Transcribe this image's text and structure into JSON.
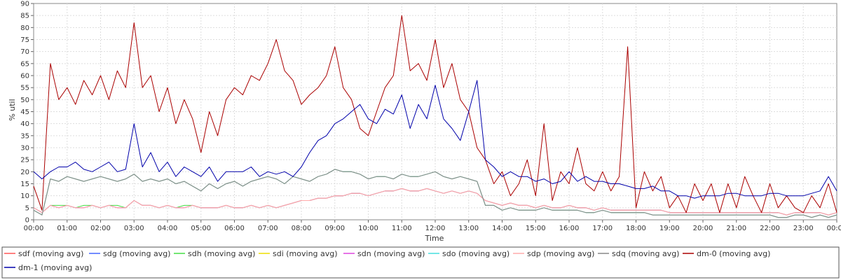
{
  "chart_data": {
    "type": "line",
    "title": "",
    "xlabel": "Time",
    "ylabel": "% util",
    "ylim": [
      0,
      90
    ],
    "xlim": [
      "00:00",
      "24:00"
    ],
    "yticks": [
      0,
      5,
      10,
      15,
      20,
      25,
      30,
      35,
      40,
      45,
      50,
      55,
      60,
      65,
      70,
      75,
      80,
      85,
      90
    ],
    "xticks": [
      "00:00",
      "01:00",
      "02:00",
      "03:00",
      "04:00",
      "05:00",
      "06:00",
      "07:00",
      "08:00",
      "09:00",
      "10:00",
      "11:00",
      "12:00",
      "13:00",
      "14:00",
      "15:00",
      "16:00",
      "17:00",
      "18:00",
      "19:00",
      "20:00",
      "21:00",
      "22:00",
      "23:00",
      "00:00"
    ],
    "grid": true,
    "legend_position": "bottom",
    "x_hours": [
      0,
      0.25,
      0.5,
      0.75,
      1,
      1.25,
      1.5,
      1.75,
      2,
      2.25,
      2.5,
      2.75,
      3,
      3.25,
      3.5,
      3.75,
      4,
      4.25,
      4.5,
      4.75,
      5,
      5.25,
      5.5,
      5.75,
      6,
      6.25,
      6.5,
      6.75,
      7,
      7.25,
      7.5,
      7.75,
      8,
      8.25,
      8.5,
      8.75,
      9,
      9.25,
      9.5,
      9.75,
      10,
      10.25,
      10.5,
      10.75,
      11,
      11.25,
      11.5,
      11.75,
      12,
      12.25,
      12.5,
      12.75,
      13,
      13.25,
      13.5,
      13.75,
      14,
      14.25,
      14.5,
      14.75,
      15,
      15.25,
      15.5,
      15.75,
      16,
      16.25,
      16.5,
      16.75,
      17,
      17.25,
      17.5,
      17.75,
      18,
      18.25,
      18.5,
      18.75,
      19,
      19.25,
      19.5,
      19.75,
      20,
      20.25,
      20.5,
      20.75,
      21,
      21.25,
      21.5,
      21.75,
      22,
      22.25,
      22.5,
      22.75,
      23,
      23.25,
      23.5,
      23.75,
      24
    ],
    "series": [
      {
        "name": "sdf (moving avg)",
        "color": "#ff5555",
        "values": [
          5,
          3,
          6,
          5,
          6,
          5,
          5,
          6,
          5,
          6,
          5,
          5,
          8,
          6,
          6,
          5,
          6,
          5,
          5,
          6,
          5,
          5,
          5,
          6,
          5,
          5,
          6,
          5,
          6,
          5,
          6,
          7,
          8,
          8,
          9,
          9,
          10,
          10,
          11,
          11,
          10,
          11,
          12,
          12,
          13,
          12,
          12,
          13,
          12,
          11,
          12,
          11,
          12,
          11,
          8,
          7,
          6,
          7,
          6,
          6,
          5,
          6,
          5,
          5,
          6,
          5,
          5,
          4,
          5,
          4,
          4,
          4,
          4,
          4,
          4,
          4,
          3,
          3,
          3,
          3,
          3,
          3,
          3,
          3,
          3,
          3,
          3,
          3,
          3,
          3,
          2,
          3,
          3,
          3,
          3,
          2,
          3
        ]
      },
      {
        "name": "sdg (moving avg)",
        "color": "#4466ff",
        "values": [
          4,
          2,
          17,
          16,
          18,
          17,
          16,
          17,
          18,
          17,
          16,
          17,
          19,
          16,
          17,
          16,
          17,
          15,
          16,
          14,
          12,
          15,
          13,
          15,
          16,
          14,
          16,
          17,
          18,
          17,
          15,
          18,
          17,
          16,
          18,
          19,
          21,
          20,
          20,
          19,
          17,
          18,
          18,
          17,
          19,
          18,
          18,
          19,
          20,
          18,
          17,
          18,
          17,
          16,
          6,
          6,
          4,
          5,
          4,
          4,
          4,
          5,
          4,
          4,
          4,
          4,
          3,
          3,
          4,
          3,
          3,
          3,
          3,
          3,
          2,
          2,
          2,
          2,
          2,
          2,
          2,
          2,
          2,
          2,
          2,
          2,
          2,
          2,
          2,
          1,
          1,
          2,
          2,
          1,
          2,
          1,
          2
        ]
      },
      {
        "name": "sdh (moving avg)",
        "color": "#44dd44",
        "values": [
          5,
          3,
          6,
          6,
          6,
          5,
          6,
          6,
          5,
          6,
          6,
          5,
          8,
          6,
          6,
          5,
          6,
          5,
          6,
          6,
          5,
          5,
          5,
          6,
          5,
          5,
          6,
          5,
          6,
          5,
          6,
          7,
          8,
          8,
          9,
          9,
          10,
          10,
          11,
          11,
          10,
          11,
          12,
          12,
          13,
          12,
          12,
          13,
          12,
          11,
          12,
          11,
          12,
          11,
          8,
          7,
          6,
          7,
          6,
          6,
          5,
          6,
          5,
          5,
          6,
          5,
          5,
          4,
          5,
          4,
          4,
          4,
          4,
          4,
          4,
          4,
          3,
          3,
          3,
          3,
          3,
          3,
          3,
          3,
          3,
          3,
          3,
          3,
          3,
          3,
          2,
          3,
          3,
          3,
          3,
          2,
          3
        ]
      },
      {
        "name": "sdi (moving avg)",
        "color": "#eedd00",
        "values": [
          4,
          2,
          17,
          16,
          18,
          17,
          16,
          17,
          18,
          17,
          16,
          17,
          19,
          16,
          17,
          16,
          17,
          15,
          16,
          14,
          12,
          15,
          13,
          15,
          16,
          14,
          16,
          17,
          18,
          17,
          15,
          18,
          17,
          16,
          18,
          19,
          21,
          20,
          20,
          19,
          17,
          18,
          18,
          17,
          19,
          18,
          18,
          19,
          20,
          18,
          17,
          18,
          17,
          16,
          6,
          6,
          4,
          5,
          4,
          4,
          4,
          5,
          4,
          4,
          4,
          4,
          3,
          3,
          4,
          3,
          3,
          3,
          3,
          3,
          2,
          2,
          2,
          2,
          2,
          2,
          2,
          2,
          2,
          2,
          2,
          2,
          2,
          2,
          2,
          1,
          1,
          2,
          2,
          1,
          2,
          1,
          2
        ]
      },
      {
        "name": "sdn (moving avg)",
        "color": "#dd44dd",
        "values": [
          5,
          3,
          6,
          5,
          6,
          5,
          5,
          6,
          5,
          6,
          5,
          5,
          8,
          6,
          6,
          5,
          6,
          5,
          5,
          6,
          5,
          5,
          5,
          6,
          5,
          5,
          6,
          5,
          6,
          5,
          6,
          7,
          8,
          8,
          9,
          9,
          10,
          10,
          11,
          11,
          10,
          11,
          12,
          12,
          13,
          12,
          12,
          13,
          12,
          11,
          12,
          11,
          12,
          11,
          8,
          7,
          6,
          7,
          6,
          6,
          5,
          6,
          5,
          5,
          6,
          5,
          5,
          4,
          5,
          4,
          4,
          4,
          4,
          4,
          4,
          4,
          3,
          3,
          3,
          3,
          3,
          3,
          3,
          3,
          3,
          3,
          3,
          3,
          3,
          3,
          2,
          3,
          3,
          3,
          3,
          2,
          3
        ]
      },
      {
        "name": "sdo (moving avg)",
        "color": "#44dddd",
        "values": [
          4,
          2,
          17,
          16,
          18,
          17,
          16,
          17,
          18,
          17,
          16,
          17,
          19,
          16,
          17,
          16,
          17,
          15,
          16,
          14,
          12,
          15,
          13,
          15,
          16,
          14,
          16,
          17,
          18,
          17,
          15,
          18,
          17,
          16,
          18,
          19,
          21,
          20,
          20,
          19,
          17,
          18,
          18,
          17,
          19,
          18,
          18,
          19,
          20,
          18,
          17,
          18,
          17,
          16,
          6,
          6,
          4,
          5,
          4,
          4,
          4,
          5,
          4,
          4,
          4,
          4,
          3,
          3,
          4,
          3,
          3,
          3,
          3,
          3,
          2,
          2,
          2,
          2,
          2,
          2,
          2,
          2,
          2,
          2,
          2,
          2,
          2,
          2,
          2,
          1,
          1,
          2,
          2,
          1,
          2,
          1,
          2
        ]
      },
      {
        "name": "sdp (moving avg)",
        "color": "#ffaaaa",
        "values": [
          5,
          3,
          6,
          5,
          6,
          5,
          5,
          6,
          5,
          6,
          5,
          5,
          8,
          6,
          6,
          5,
          6,
          5,
          5,
          6,
          5,
          5,
          5,
          6,
          5,
          5,
          6,
          5,
          6,
          5,
          6,
          7,
          8,
          8,
          9,
          9,
          10,
          10,
          11,
          11,
          10,
          11,
          12,
          12,
          13,
          12,
          12,
          13,
          12,
          11,
          12,
          11,
          12,
          11,
          8,
          7,
          6,
          7,
          6,
          6,
          5,
          6,
          5,
          5,
          6,
          5,
          5,
          4,
          5,
          4,
          4,
          4,
          4,
          4,
          4,
          4,
          3,
          3,
          3,
          3,
          3,
          3,
          3,
          3,
          3,
          3,
          3,
          3,
          3,
          3,
          2,
          3,
          3,
          3,
          3,
          2,
          3
        ]
      },
      {
        "name": "sdq (moving avg)",
        "color": "#888888",
        "values": [
          4,
          2,
          17,
          16,
          18,
          17,
          16,
          17,
          18,
          17,
          16,
          17,
          19,
          16,
          17,
          16,
          17,
          15,
          16,
          14,
          12,
          15,
          13,
          15,
          16,
          14,
          16,
          17,
          18,
          17,
          15,
          18,
          17,
          16,
          18,
          19,
          21,
          20,
          20,
          19,
          17,
          18,
          18,
          17,
          19,
          18,
          18,
          19,
          20,
          18,
          17,
          18,
          17,
          16,
          6,
          6,
          4,
          5,
          4,
          4,
          4,
          5,
          4,
          4,
          4,
          4,
          3,
          3,
          4,
          3,
          3,
          3,
          3,
          3,
          2,
          2,
          2,
          2,
          2,
          2,
          2,
          2,
          2,
          2,
          2,
          2,
          2,
          2,
          2,
          1,
          1,
          2,
          2,
          1,
          2,
          1,
          2
        ]
      },
      {
        "name": "dm-0 (moving avg)",
        "color": "#aa0000",
        "values": [
          14,
          4,
          65,
          50,
          55,
          48,
          58,
          52,
          60,
          50,
          62,
          55,
          82,
          55,
          60,
          45,
          55,
          40,
          50,
          42,
          28,
          45,
          35,
          50,
          55,
          52,
          60,
          58,
          65,
          75,
          62,
          58,
          48,
          52,
          55,
          60,
          72,
          55,
          50,
          38,
          35,
          45,
          55,
          60,
          85,
          62,
          65,
          58,
          75,
          55,
          65,
          50,
          45,
          30,
          25,
          15,
          20,
          10,
          15,
          25,
          10,
          40,
          8,
          20,
          15,
          30,
          15,
          12,
          20,
          12,
          18,
          72,
          5,
          20,
          12,
          18,
          5,
          10,
          3,
          15,
          8,
          15,
          3,
          15,
          5,
          18,
          10,
          3,
          15,
          5,
          10,
          5,
          3,
          10,
          5,
          15,
          3
        ]
      },
      {
        "name": "dm-1 (moving avg)",
        "color": "#0000aa",
        "values": [
          20,
          17,
          20,
          22,
          22,
          24,
          21,
          20,
          22,
          24,
          20,
          21,
          40,
          22,
          28,
          20,
          24,
          18,
          22,
          20,
          18,
          22,
          16,
          20,
          20,
          20,
          22,
          18,
          20,
          19,
          20,
          18,
          22,
          28,
          33,
          35,
          40,
          42,
          45,
          48,
          42,
          40,
          46,
          44,
          52,
          38,
          48,
          42,
          56,
          42,
          38,
          33,
          45,
          58,
          25,
          22,
          18,
          20,
          18,
          18,
          16,
          17,
          15,
          16,
          20,
          16,
          18,
          16,
          16,
          15,
          15,
          14,
          13,
          13,
          14,
          12,
          12,
          10,
          10,
          9,
          10,
          10,
          10,
          11,
          11,
          10,
          10,
          10,
          11,
          11,
          10,
          10,
          10,
          11,
          12,
          18,
          12
        ]
      }
    ]
  }
}
